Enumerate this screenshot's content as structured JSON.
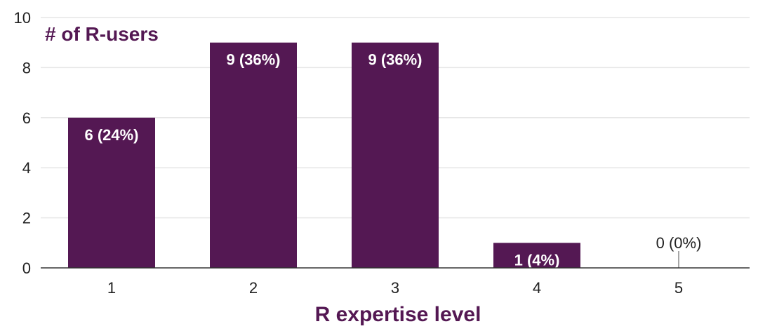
{
  "chart_data": {
    "type": "bar",
    "title": "# of R-users",
    "xlabel": "R expertise level",
    "ylabel": "",
    "categories": [
      "1",
      "2",
      "3",
      "4",
      "5"
    ],
    "values": [
      6,
      9,
      9,
      1,
      0
    ],
    "data_labels": [
      "6 (24%)",
      "9 (36%)",
      "9 (36%)",
      "1 (4%)",
      "0 (0%)"
    ],
    "ylim": [
      0,
      10
    ],
    "yticks": [
      "0",
      "2",
      "4",
      "6",
      "8",
      "10"
    ],
    "grid": true,
    "legend": "none",
    "bar_color": "#541853",
    "title_color": "#541853"
  }
}
